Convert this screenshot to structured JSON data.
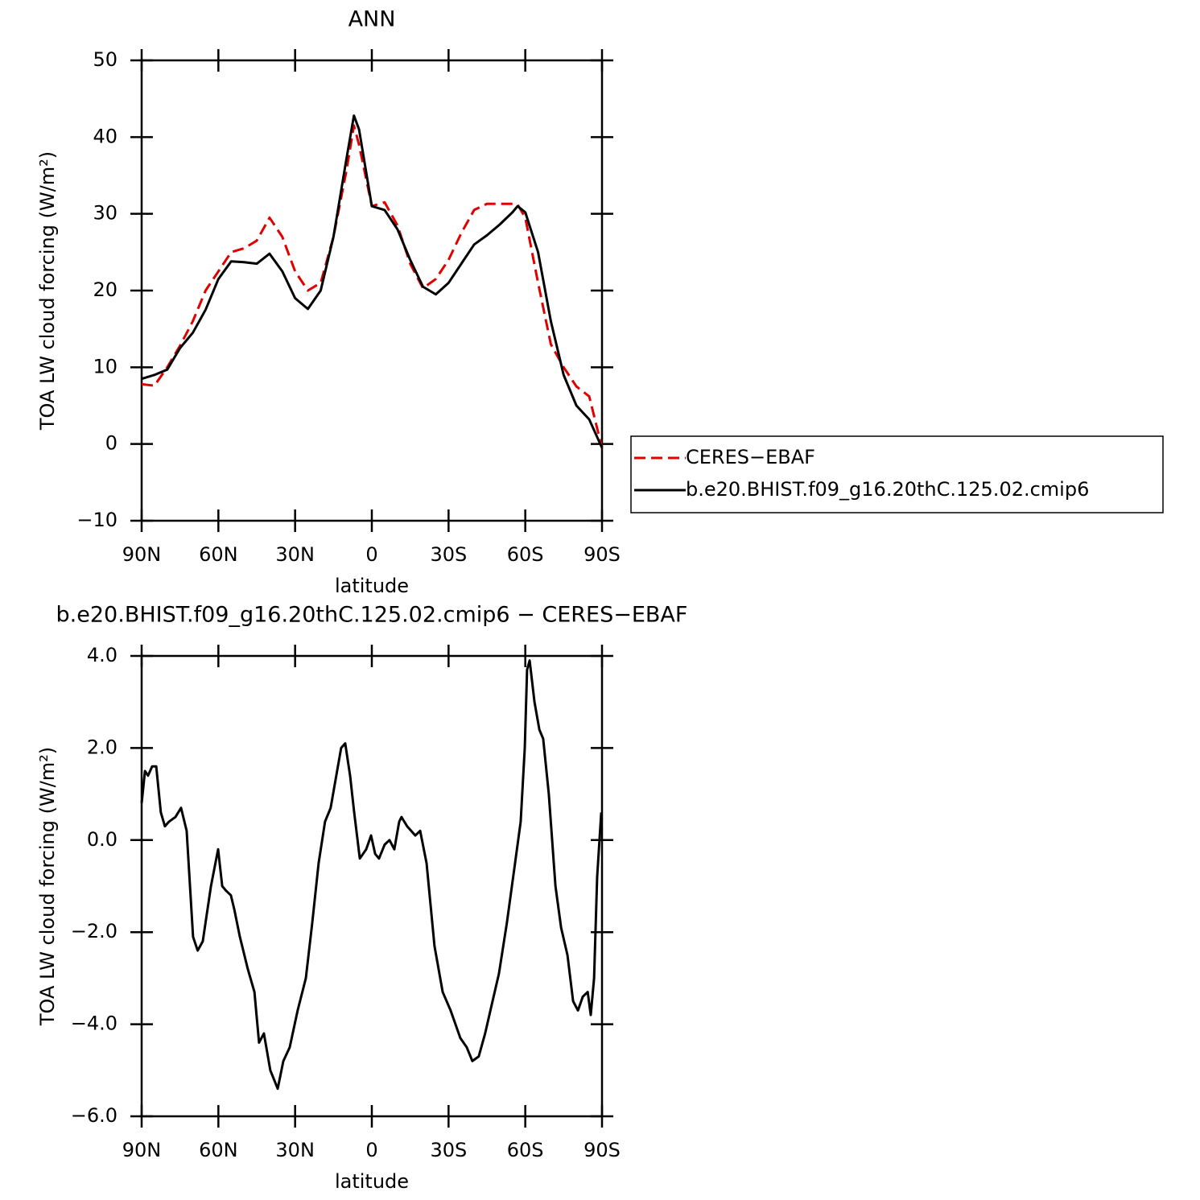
{
  "chart_data": [
    {
      "type": "line",
      "title": "ANN",
      "xlabel": "latitude",
      "ylabel": "TOA LW cloud forcing (W/m²)",
      "xlim": [
        90,
        -90
      ],
      "xticks": [
        {
          "value": 90,
          "label": "90N"
        },
        {
          "value": 60,
          "label": "60N"
        },
        {
          "value": 30,
          "label": "30N"
        },
        0,
        {
          "value": -30,
          "label": "30S"
        },
        {
          "value": -60,
          "label": "60S"
        },
        {
          "value": -90,
          "label": "90S"
        }
      ],
      "ylim": [
        -10,
        50
      ],
      "yticks": [
        {
          "value": -10,
          "label": "−10"
        },
        0,
        10,
        20,
        30,
        40,
        50
      ],
      "legend": "right",
      "x": [
        90,
        85,
        80,
        75,
        70,
        65,
        60,
        55,
        50,
        45,
        40,
        35,
        30,
        25,
        20,
        15,
        10,
        7,
        5,
        0,
        -5,
        -10,
        -15,
        -20,
        -25,
        -30,
        -35,
        -40,
        -45,
        -50,
        -55,
        -57,
        -60,
        -65,
        -70,
        -75,
        -80,
        -85,
        -90
      ],
      "series": [
        {
          "name": "CERES−EBAF",
          "color": "#e00000",
          "dash": true,
          "values": [
            7.8,
            7.6,
            10,
            12.8,
            16,
            20,
            22.5,
            25,
            25.5,
            26.5,
            29.5,
            27,
            22.5,
            20,
            21,
            27,
            35.5,
            41.5,
            39,
            31,
            31.5,
            28.5,
            23.5,
            20.3,
            21.5,
            24,
            27.5,
            30.5,
            31.3,
            31.3,
            31.3,
            31.2,
            29.5,
            21,
            13,
            10,
            7.5,
            6.2,
            -0.5
          ]
        },
        {
          "name": "b.e20.BHIST.f09_g16.20thC.125.02.cmip6",
          "color": "#000000",
          "dash": false,
          "values": [
            8.5,
            9,
            9.7,
            12.5,
            14.5,
            17.5,
            21.5,
            23.8,
            23.7,
            23.5,
            24.8,
            22.5,
            19,
            17.6,
            20,
            27,
            37,
            42.8,
            41,
            31,
            30.5,
            28,
            24,
            20.5,
            19.5,
            21,
            23.5,
            26,
            27.2,
            28.6,
            30.2,
            31,
            30.2,
            25,
            16,
            9,
            5,
            3.2,
            -0.5
          ]
        }
      ]
    },
    {
      "type": "line",
      "title": "b.e20.BHIST.f09_g16.20thC.125.02.cmip6 − CERES−EBAF",
      "xlabel": "latitude",
      "ylabel": "TOA LW cloud forcing (W/m²)",
      "xlim": [
        90,
        -90
      ],
      "xticks": [
        {
          "value": 90,
          "label": "90N"
        },
        {
          "value": 60,
          "label": "60N"
        },
        {
          "value": 30,
          "label": "30N"
        },
        0,
        {
          "value": -30,
          "label": "30S"
        },
        {
          "value": -60,
          "label": "60S"
        },
        {
          "value": -90,
          "label": "90S"
        }
      ],
      "ylim": [
        -6,
        4
      ],
      "yticks": [
        {
          "value": -6,
          "label": "−6.0"
        },
        {
          "value": -4,
          "label": "−4.0"
        },
        {
          "value": -2,
          "label": "−2.0"
        },
        {
          "value": 0,
          "label": "0.0"
        },
        {
          "value": 2,
          "label": "2.0"
        },
        {
          "value": 4,
          "label": "4.0"
        }
      ],
      "x": [
        90,
        88.7,
        87.5,
        85.9,
        84.3,
        82.5,
        80.9,
        79.3,
        76.8,
        74.6,
        72.4,
        69.9,
        68.1,
        66.1,
        62.9,
        60.1,
        58.5,
        57,
        55.1,
        53.8,
        51.6,
        48.5,
        45.9,
        44.1,
        42.2,
        39.7,
        36.8,
        34.6,
        32.1,
        29,
        25.8,
        23.3,
        20.8,
        18.3,
        16.1,
        13.9,
        12,
        10.4,
        8.5,
        6.9,
        4.7,
        2.2,
        0.3,
        -1.3,
        -2.8,
        -5,
        -6.9,
        -8.8,
        -10.7,
        -11.6,
        -13.8,
        -17,
        -18.9,
        -21.4,
        -24.5,
        -27.7,
        -30.8,
        -34.6,
        -37.1,
        -39.3,
        -41.8,
        -44.3,
        -47.2,
        -49.7,
        -52.8,
        -56,
        -58.2,
        -59.8,
        -60.7,
        -61.7,
        -63.6,
        -65.5,
        -67,
        -69.2,
        -71.8,
        -74,
        -76.5,
        -78.7,
        -80.6,
        -82.5,
        -84.4,
        -85.6,
        -86.9,
        -88.1,
        -89.7
      ],
      "series": [
        {
          "color": "#000000",
          "dash": false,
          "values": [
            0.8,
            1.5,
            1.4,
            1.6,
            1.6,
            0.6,
            0.3,
            0.4,
            0.5,
            0.7,
            0.2,
            -2.1,
            -2.4,
            -2.2,
            -1.0,
            -0.2,
            -1.0,
            -1.1,
            -1.2,
            -1.5,
            -2.1,
            -2.8,
            -3.3,
            -4.4,
            -4.2,
            -5.0,
            -5.4,
            -4.8,
            -4.5,
            -3.7,
            -3.0,
            -1.8,
            -0.5,
            0.4,
            0.7,
            1.4,
            2.0,
            2.1,
            1.4,
            0.6,
            -0.4,
            -0.2,
            0.1,
            -0.3,
            -0.4,
            -0.1,
            0.0,
            -0.2,
            0.4,
            0.5,
            0.3,
            0.1,
            0.2,
            -0.5,
            -2.3,
            -3.3,
            -3.7,
            -4.3,
            -4.5,
            -4.8,
            -4.7,
            -4.2,
            -3.5,
            -2.9,
            -1.8,
            -0.5,
            0.4,
            2.0,
            3.7,
            3.9,
            3.0,
            2.4,
            2.2,
            1.0,
            -1.0,
            -1.9,
            -2.5,
            -3.5,
            -3.7,
            -3.4,
            -3.3,
            -3.8,
            -3.0,
            -0.8,
            0.6
          ]
        }
      ]
    }
  ]
}
